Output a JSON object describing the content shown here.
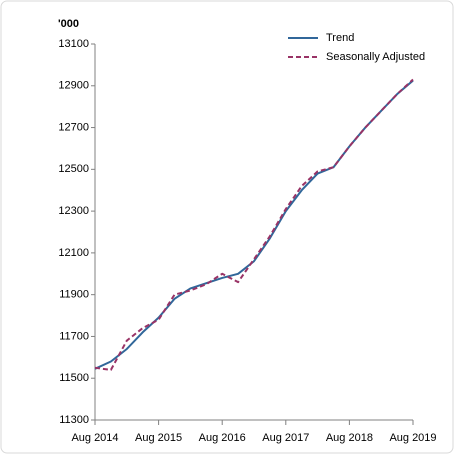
{
  "chart_data": {
    "type": "line",
    "y_label": "'000",
    "categories": [
      "Aug 2014",
      null,
      null,
      null,
      "Aug 2015",
      null,
      null,
      null,
      "Aug 2016",
      null,
      null,
      null,
      "Aug 2017",
      null,
      null,
      null,
      "Aug 2018",
      null,
      null,
      null,
      "Aug 2019"
    ],
    "series": [
      {
        "name": "Trend",
        "color": "#31679a",
        "dash": false,
        "values": [
          11545,
          11580,
          11640,
          11720,
          11790,
          11880,
          11930,
          11955,
          11980,
          12000,
          12060,
          12170,
          12300,
          12400,
          12480,
          12510,
          12610,
          12700,
          12780,
          12860,
          12925
        ]
      },
      {
        "name": "Seasonally Adjusted",
        "color": "#993366",
        "dash": true,
        "values": [
          11550,
          11540,
          11680,
          11740,
          11780,
          11900,
          11920,
          11950,
          12000,
          11960,
          12070,
          12180,
          12310,
          12420,
          12490,
          12510,
          12610,
          12700,
          12780,
          12860,
          12930
        ]
      }
    ],
    "ylim": [
      11300,
      13100
    ],
    "yticks": [
      11300,
      11500,
      11700,
      11900,
      12100,
      12300,
      12500,
      12700,
      12900,
      13100
    ],
    "grid": false,
    "legend": "top-right"
  }
}
